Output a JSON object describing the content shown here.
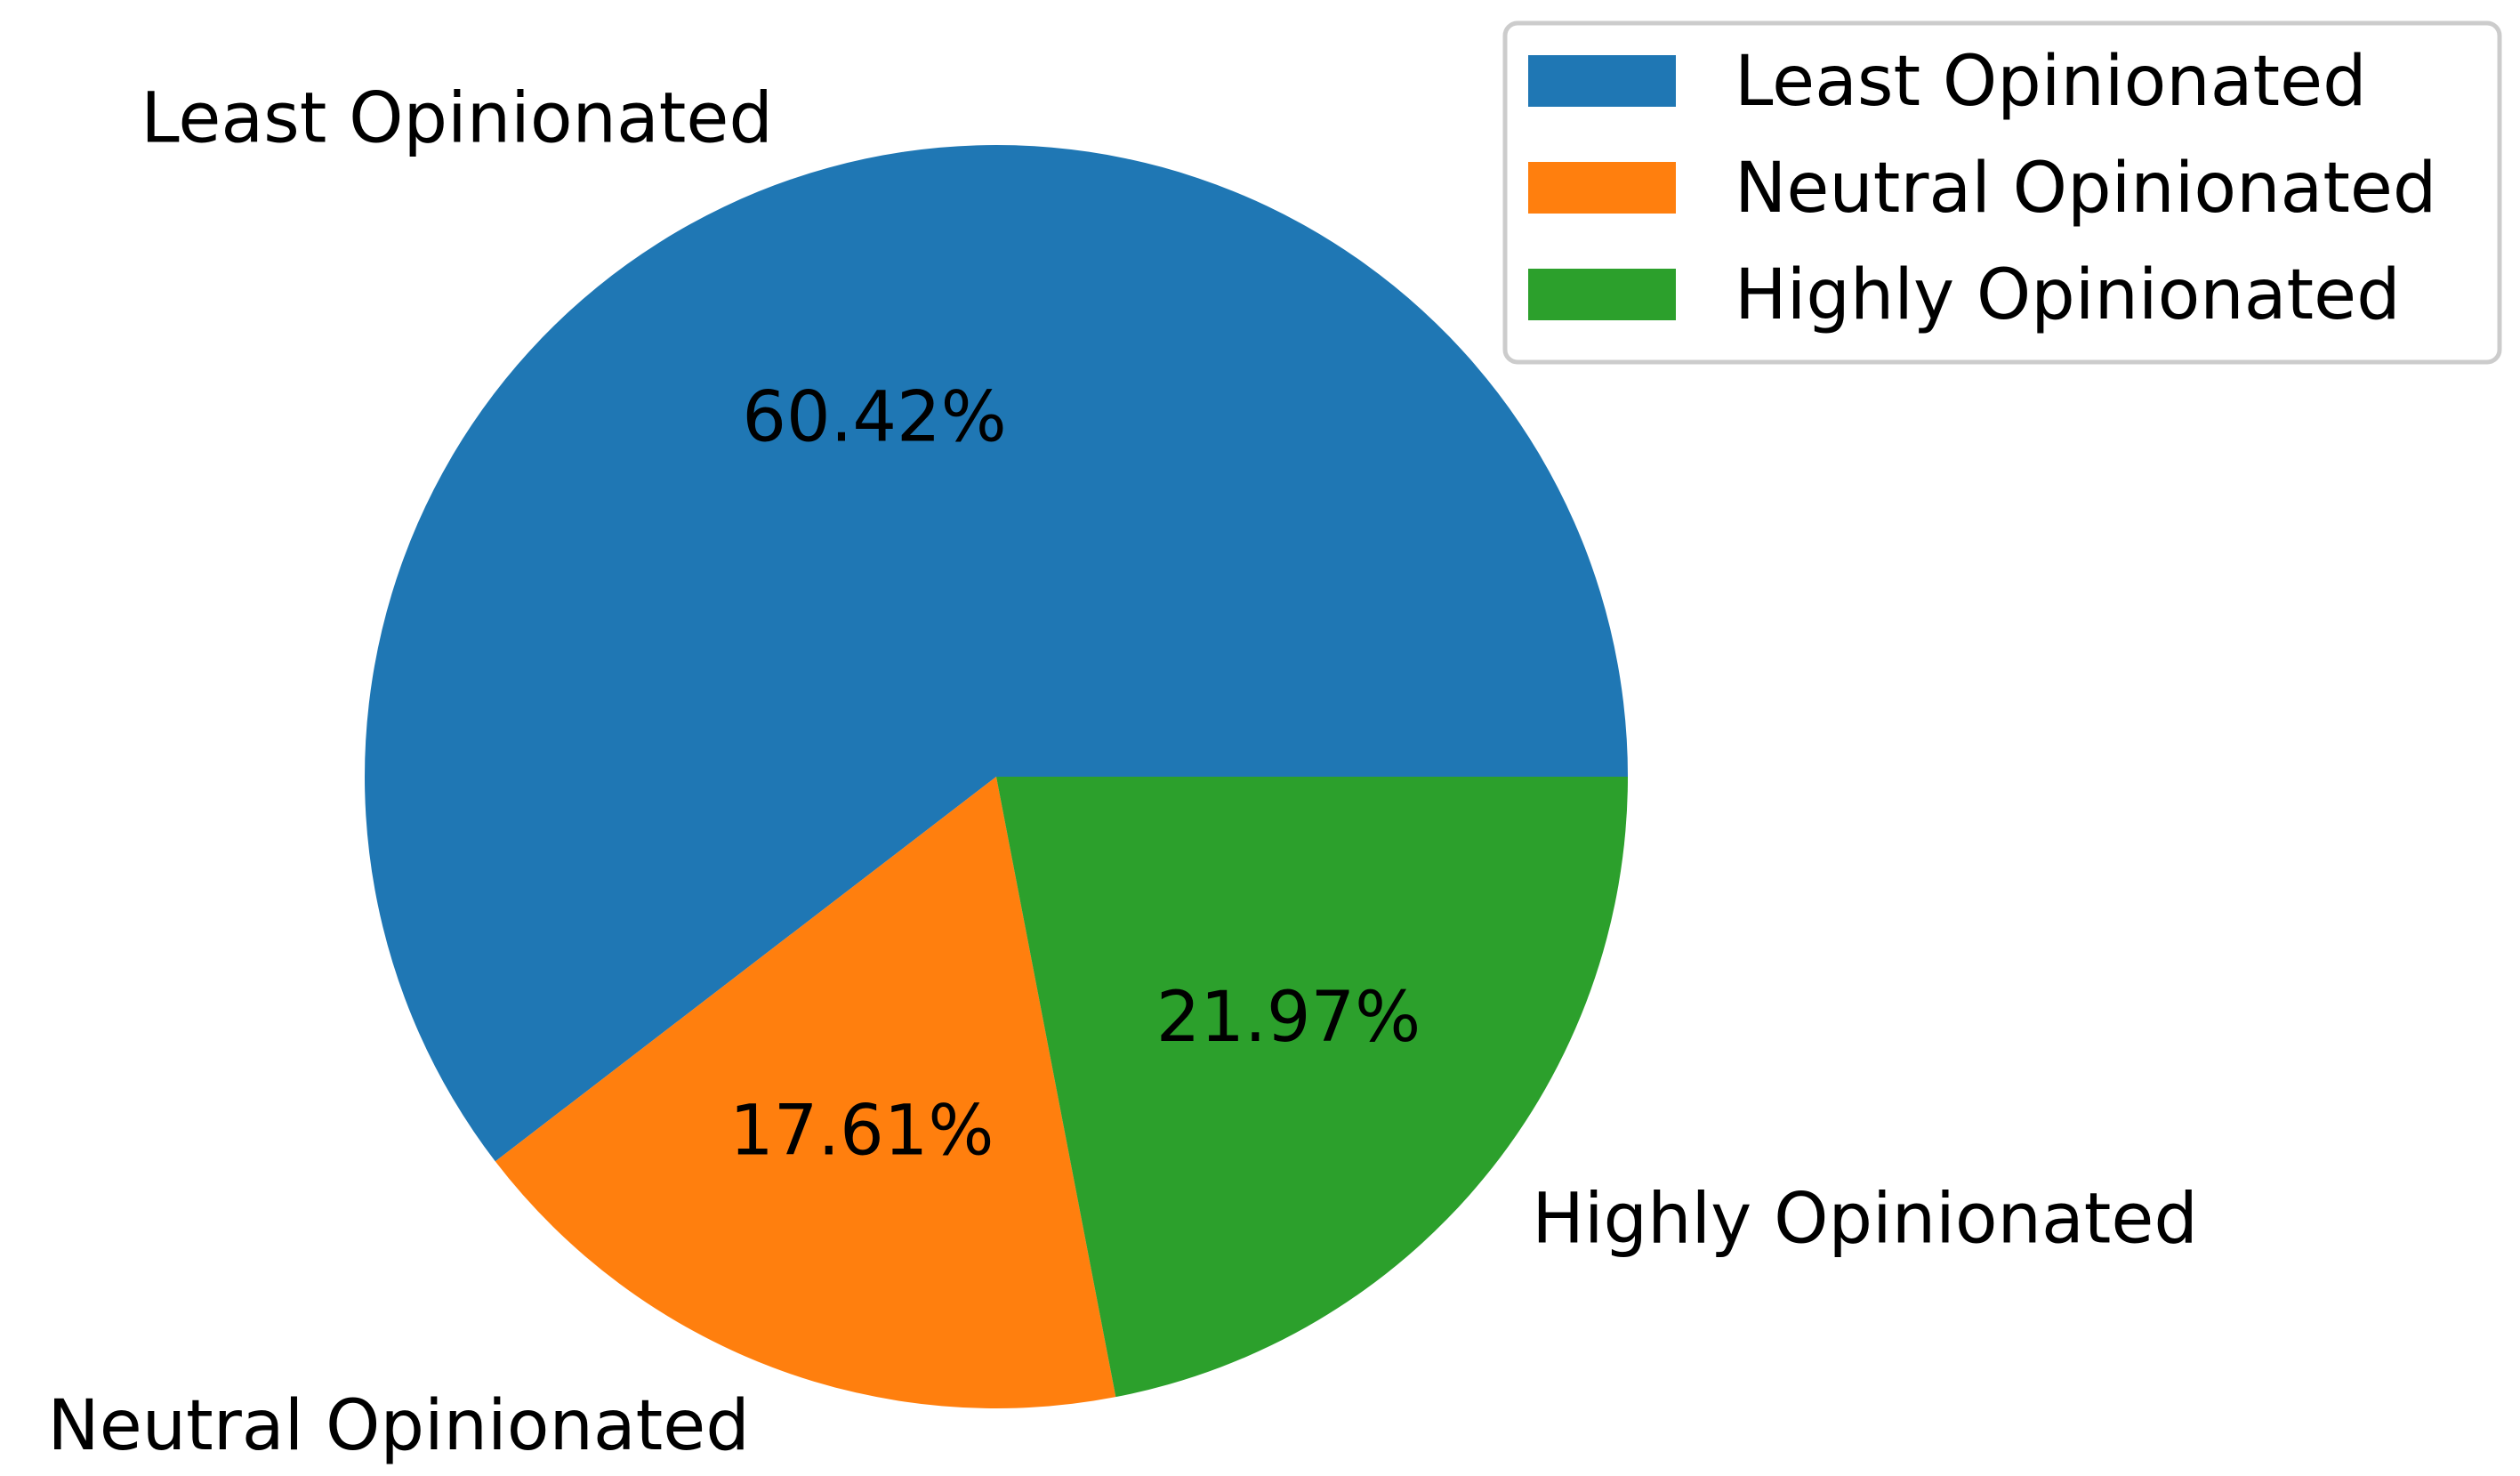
{
  "chart_data": {
    "type": "pie",
    "categories": [
      "Least Opinionated",
      "Neutral Opinionated",
      "Highly Opinionated"
    ],
    "values": [
      60.42,
      17.61,
      21.97
    ],
    "value_labels": [
      "60.42%",
      "17.61%",
      "21.97%"
    ],
    "colors": [
      "#1f77b4",
      "#ff7f0e",
      "#2ca02c"
    ],
    "start_angle_deg": 0,
    "direction": "counterclockwise",
    "legend": {
      "placement": "top-right",
      "entries": [
        "Least Opinionated",
        "Neutral Opinionated",
        "Highly Opinionated"
      ]
    }
  }
}
